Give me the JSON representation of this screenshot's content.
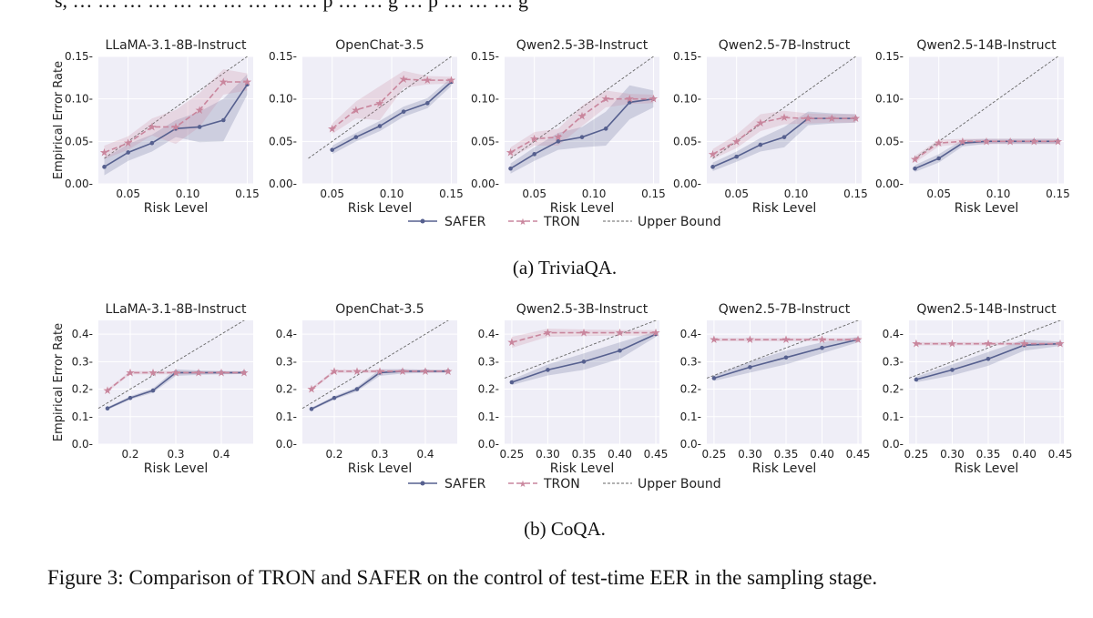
{
  "colors": {
    "safer": "#56608f",
    "tron": "#c9869d",
    "upper_bound": "#666666",
    "panel_bg": "#efeef7",
    "grid": "#ffffff"
  },
  "legend": {
    "safer": "SAFER",
    "tron": "TRON",
    "upper_bound": "Upper Bound"
  },
  "top_fragment": "s,  … … … … … … … … … …   p … … g … p … … … g",
  "figure_caption": "Figure 3: Comparison of TRON and SAFER on the control of test-time EER in the sampling stage.",
  "chart_data": [
    {
      "group": "(a) TriviaQA.",
      "ylabel": "Empirical Error Rate",
      "xlabel": "Risk Level",
      "xlim": [
        0.025,
        0.155
      ],
      "ylim": [
        0,
        0.15
      ],
      "xticks": [
        "0.05",
        "0.10",
        "0.15"
      ],
      "yticks": [
        "0.00",
        "0.05",
        "0.10",
        "0.15"
      ],
      "panels": [
        {
          "title": "LLaMA-3.1-8B-Instruct",
          "type": "line",
          "upper_bound": [
            [
              0.03,
              0.03
            ],
            [
              0.155,
              0.155
            ]
          ],
          "series": [
            {
              "name": "SAFER",
              "x": [
                0.03,
                0.05,
                0.07,
                0.09,
                0.11,
                0.13,
                0.15
              ],
              "y": [
                0.02,
                0.037,
                0.048,
                0.065,
                0.067,
                0.075,
                0.117
              ],
              "band": [
                0.01,
                0.01,
                0.01,
                0.01,
                0.018,
                0.025,
                0.012
              ]
            },
            {
              "name": "TRON",
              "x": [
                0.03,
                0.05,
                0.07,
                0.09,
                0.11,
                0.13,
                0.15
              ],
              "y": [
                0.037,
                0.048,
                0.067,
                0.067,
                0.087,
                0.12,
                0.12
              ],
              "band": [
                0.008,
                0.008,
                0.01,
                0.02,
                0.02,
                0.015,
                0.01
              ]
            }
          ]
        },
        {
          "title": "OpenChat-3.5",
          "type": "line",
          "upper_bound": [
            [
              0.03,
              0.03
            ],
            [
              0.155,
              0.155
            ]
          ],
          "series": [
            {
              "name": "SAFER",
              "x": [
                0.05,
                0.07,
                0.09,
                0.11,
                0.13,
                0.15
              ],
              "y": [
                0.04,
                0.055,
                0.068,
                0.085,
                0.095,
                0.12
              ],
              "band": [
                0.005,
                0.005,
                0.006,
                0.006,
                0.006,
                0.005
              ]
            },
            {
              "name": "TRON",
              "x": [
                0.05,
                0.07,
                0.09,
                0.11,
                0.13,
                0.15
              ],
              "y": [
                0.065,
                0.087,
                0.095,
                0.123,
                0.122,
                0.122
              ],
              "band": [
                0.006,
                0.01,
                0.02,
                0.01,
                0.005,
                0.004
              ]
            }
          ]
        },
        {
          "title": "Qwen2.5-3B-Instruct",
          "type": "line",
          "upper_bound": [
            [
              0.03,
              0.03
            ],
            [
              0.155,
              0.155
            ]
          ],
          "series": [
            {
              "name": "SAFER",
              "x": [
                0.03,
                0.05,
                0.07,
                0.09,
                0.11,
                0.13,
                0.15
              ],
              "y": [
                0.018,
                0.035,
                0.05,
                0.055,
                0.065,
                0.096,
                0.1
              ],
              "band": [
                0.006,
                0.008,
                0.01,
                0.012,
                0.02,
                0.02,
                0.01
              ]
            },
            {
              "name": "TRON",
              "x": [
                0.03,
                0.05,
                0.07,
                0.09,
                0.11,
                0.13,
                0.15
              ],
              "y": [
                0.037,
                0.053,
                0.055,
                0.08,
                0.1,
                0.1,
                0.1
              ],
              "band": [
                0.006,
                0.008,
                0.01,
                0.012,
                0.01,
                0.006,
                0.005
              ]
            }
          ]
        },
        {
          "title": "Qwen2.5-7B-Instruct",
          "type": "line",
          "upper_bound": [
            [
              0.03,
              0.03
            ],
            [
              0.155,
              0.155
            ]
          ],
          "series": [
            {
              "name": "SAFER",
              "x": [
                0.03,
                0.05,
                0.07,
                0.09,
                0.11,
                0.13,
                0.15
              ],
              "y": [
                0.02,
                0.032,
                0.046,
                0.055,
                0.077,
                0.077,
                0.077
              ],
              "band": [
                0.005,
                0.006,
                0.008,
                0.012,
                0.008,
                0.006,
                0.005
              ]
            },
            {
              "name": "TRON",
              "x": [
                0.03,
                0.05,
                0.07,
                0.09,
                0.11,
                0.13,
                0.15
              ],
              "y": [
                0.035,
                0.05,
                0.072,
                0.078,
                0.077,
                0.077,
                0.077
              ],
              "band": [
                0.006,
                0.008,
                0.01,
                0.008,
                0.006,
                0.005,
                0.005
              ]
            }
          ]
        },
        {
          "title": "Qwen2.5-14B-Instruct",
          "type": "line",
          "upper_bound": [
            [
              0.03,
              0.03
            ],
            [
              0.155,
              0.155
            ]
          ],
          "series": [
            {
              "name": "SAFER",
              "x": [
                0.03,
                0.05,
                0.07,
                0.09,
                0.11,
                0.13,
                0.15
              ],
              "y": [
                0.018,
                0.03,
                0.048,
                0.05,
                0.05,
                0.05,
                0.05
              ],
              "band": [
                0.004,
                0.005,
                0.004,
                0.003,
                0.003,
                0.003,
                0.003
              ]
            },
            {
              "name": "TRON",
              "x": [
                0.03,
                0.05,
                0.07,
                0.09,
                0.11,
                0.13,
                0.15
              ],
              "y": [
                0.029,
                0.048,
                0.05,
                0.05,
                0.05,
                0.05,
                0.05
              ],
              "band": [
                0.004,
                0.004,
                0.003,
                0.003,
                0.003,
                0.003,
                0.003
              ]
            }
          ]
        }
      ]
    },
    {
      "group": "(b) CoQA.",
      "ylabel": "Empirical Error Rate",
      "xlabel": "Risk Level",
      "ylim": [
        0,
        0.45
      ],
      "yticks": [
        "0.0",
        "0.1",
        "0.2",
        "0.3",
        "0.4"
      ],
      "panels": [
        {
          "title": "LLaMA-3.1-8B-Instruct",
          "type": "line",
          "xlim": [
            0.13,
            0.47
          ],
          "xticks": [
            "0.2",
            "0.3",
            "0.4"
          ],
          "upper_bound": [
            [
              0.13,
              0.13
            ],
            [
              0.47,
              0.47
            ]
          ],
          "series": [
            {
              "name": "SAFER",
              "x": [
                0.15,
                0.2,
                0.25,
                0.3,
                0.35,
                0.4,
                0.45
              ],
              "y": [
                0.13,
                0.168,
                0.195,
                0.26,
                0.26,
                0.26,
                0.26
              ],
              "band": [
                0.005,
                0.006,
                0.008,
                0.012,
                0.008,
                0.006,
                0.005
              ]
            },
            {
              "name": "TRON",
              "x": [
                0.15,
                0.2,
                0.25,
                0.3,
                0.35,
                0.4,
                0.45
              ],
              "y": [
                0.195,
                0.26,
                0.26,
                0.26,
                0.26,
                0.26,
                0.26
              ],
              "band": [
                0.005,
                0.006,
                0.006,
                0.006,
                0.005,
                0.005,
                0.005
              ]
            }
          ]
        },
        {
          "title": "OpenChat-3.5",
          "type": "line",
          "xlim": [
            0.13,
            0.47
          ],
          "xticks": [
            "0.2",
            "0.3",
            "0.4"
          ],
          "upper_bound": [
            [
              0.13,
              0.13
            ],
            [
              0.47,
              0.47
            ]
          ],
          "series": [
            {
              "name": "SAFER",
              "x": [
                0.15,
                0.2,
                0.25,
                0.3,
                0.35,
                0.4,
                0.45
              ],
              "y": [
                0.128,
                0.168,
                0.2,
                0.26,
                0.265,
                0.265,
                0.265
              ],
              "band": [
                0.005,
                0.006,
                0.008,
                0.012,
                0.008,
                0.006,
                0.005
              ]
            },
            {
              "name": "TRON",
              "x": [
                0.15,
                0.2,
                0.25,
                0.3,
                0.35,
                0.4,
                0.45
              ],
              "y": [
                0.2,
                0.265,
                0.265,
                0.265,
                0.265,
                0.265,
                0.265
              ],
              "band": [
                0.005,
                0.006,
                0.006,
                0.006,
                0.005,
                0.005,
                0.005
              ]
            }
          ]
        },
        {
          "title": "Qwen2.5-3B-Instruct",
          "type": "line",
          "xlim": [
            0.24,
            0.455
          ],
          "xticks": [
            "0.25",
            "0.30",
            "0.35",
            "0.40",
            "0.45"
          ],
          "upper_bound": [
            [
              0.24,
              0.24
            ],
            [
              0.455,
              0.455
            ]
          ],
          "series": [
            {
              "name": "SAFER",
              "x": [
                0.25,
                0.3,
                0.35,
                0.4,
                0.45
              ],
              "y": [
                0.225,
                0.27,
                0.3,
                0.34,
                0.4
              ],
              "band": [
                0.01,
                0.02,
                0.03,
                0.03,
                0.01
              ]
            },
            {
              "name": "TRON",
              "x": [
                0.25,
                0.3,
                0.35,
                0.4,
                0.45
              ],
              "y": [
                0.37,
                0.405,
                0.405,
                0.405,
                0.405
              ],
              "band": [
                0.02,
                0.015,
                0.012,
                0.01,
                0.01
              ]
            }
          ]
        },
        {
          "title": "Qwen2.5-7B-Instruct",
          "type": "line",
          "xlim": [
            0.24,
            0.455
          ],
          "xticks": [
            "0.25",
            "0.30",
            "0.35",
            "0.40",
            "0.45"
          ],
          "upper_bound": [
            [
              0.24,
              0.24
            ],
            [
              0.455,
              0.455
            ]
          ],
          "series": [
            {
              "name": "SAFER",
              "x": [
                0.25,
                0.3,
                0.35,
                0.4,
                0.45
              ],
              "y": [
                0.24,
                0.28,
                0.315,
                0.35,
                0.38
              ],
              "band": [
                0.01,
                0.02,
                0.025,
                0.02,
                0.01
              ]
            },
            {
              "name": "TRON",
              "x": [
                0.25,
                0.3,
                0.35,
                0.4,
                0.45
              ],
              "y": [
                0.38,
                0.38,
                0.38,
                0.38,
                0.38
              ],
              "band": [
                0.006,
                0.006,
                0.006,
                0.006,
                0.006
              ]
            }
          ]
        },
        {
          "title": "Qwen2.5-14B-Instruct",
          "type": "line",
          "xlim": [
            0.24,
            0.455
          ],
          "xticks": [
            "0.25",
            "0.30",
            "0.35",
            "0.40",
            "0.45"
          ],
          "upper_bound": [
            [
              0.24,
              0.24
            ],
            [
              0.455,
              0.455
            ]
          ],
          "series": [
            {
              "name": "SAFER",
              "x": [
                0.25,
                0.3,
                0.35,
                0.4,
                0.45
              ],
              "y": [
                0.235,
                0.27,
                0.31,
                0.36,
                0.365
              ],
              "band": [
                0.01,
                0.02,
                0.025,
                0.02,
                0.008
              ]
            },
            {
              "name": "TRON",
              "x": [
                0.25,
                0.3,
                0.35,
                0.4,
                0.45
              ],
              "y": [
                0.365,
                0.365,
                0.365,
                0.365,
                0.365
              ],
              "band": [
                0.006,
                0.006,
                0.006,
                0.006,
                0.006
              ]
            }
          ]
        }
      ]
    }
  ]
}
